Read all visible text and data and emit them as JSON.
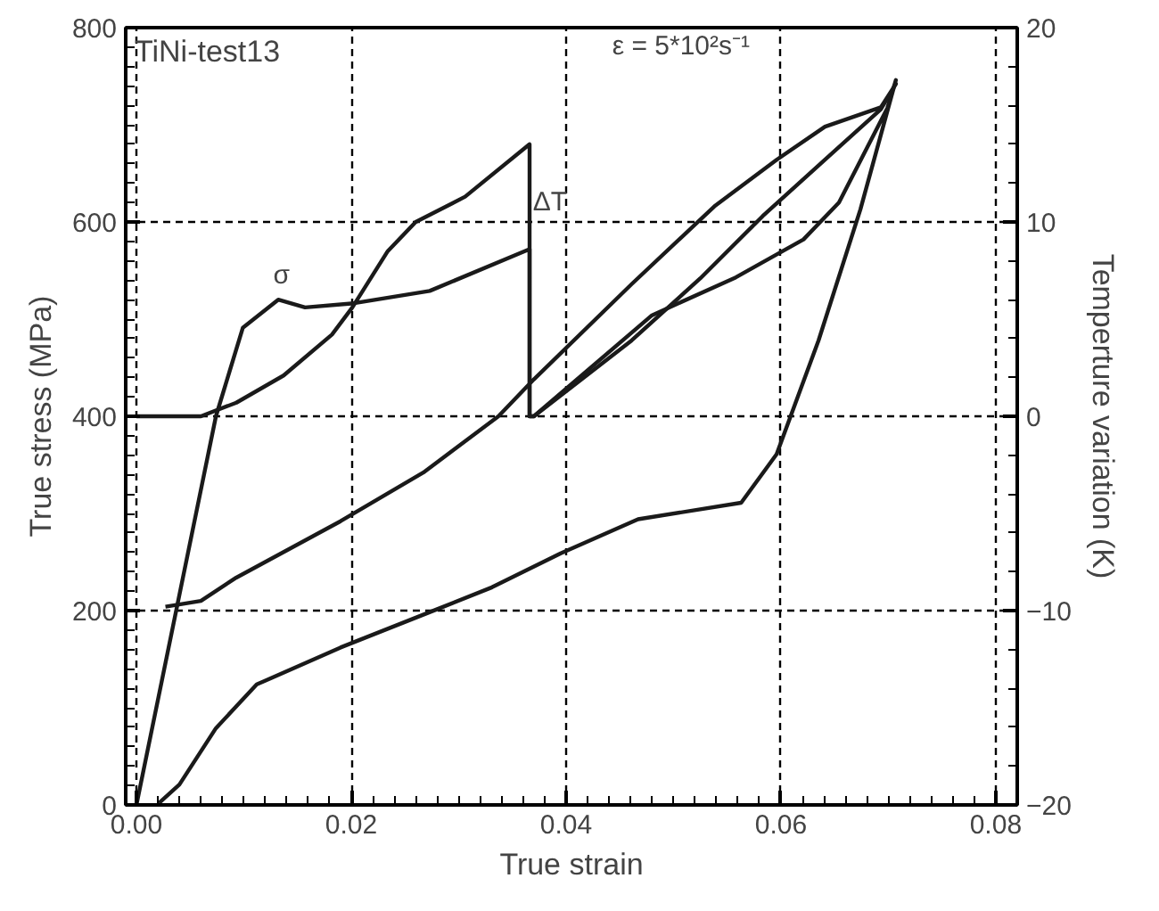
{
  "chart_data": {
    "type": "line",
    "xlabel": "True strain",
    "ylabel": "True stress (MPa)",
    "y2label": "Temperture variation (K)",
    "annotations": [
      "TiNi-test13",
      "ε = 5*10²s⁻¹",
      "σ",
      "ΔT"
    ],
    "xlim": [
      -0.001,
      0.082
    ],
    "xticks": [
      {
        "value": 0,
        "label": "0.00"
      },
      {
        "value": 0.02,
        "label": "0.02"
      },
      {
        "value": 0.04,
        "label": "0.04"
      },
      {
        "value": 0.06,
        "label": "0.06"
      },
      {
        "value": 0.08,
        "label": "0.08"
      }
    ],
    "ylim": [
      0,
      800
    ],
    "yticks": [
      0,
      200,
      400,
      600,
      800
    ],
    "y2lim": [
      -20,
      20
    ],
    "y2ticks": [
      -20,
      -10,
      0,
      10,
      20
    ],
    "grid": true,
    "line_style": "solid",
    "marker": "none",
    "series": [
      {
        "color": "#1a1a1a",
        "x": [
          0,
          0.0074,
          0.0099,
          0.0132,
          0.0157,
          0.02,
          0.0273,
          0.0366,
          0.0366,
          0.037,
          0.048,
          0.0558,
          0.0621,
          0.0654,
          0.0699,
          0.0707,
          0.0674,
          0.0635,
          0.0596,
          0.0563,
          0.0467,
          0.0395,
          0.0331,
          0.0279,
          0.019,
          0.0112,
          0.0074,
          0.004,
          0.0021
        ],
        "values": [
          0,
          400,
          491,
          520,
          512,
          516,
          529,
          572,
          400,
          400,
          504,
          543,
          582,
          620,
          717,
          746,
          613,
          478,
          361,
          311,
          294,
          259,
          224,
          201,
          162,
          124,
          79,
          21,
          2
        ]
      },
      {
        "color": "#1a1a1a",
        "axis": "y2",
        "x": [
          0,
          0.006,
          0.0093,
          0.0137,
          0.0182,
          0.0201,
          0.0234,
          0.026,
          0.0306,
          0.0366,
          0.0366,
          0.037,
          0.0461,
          0.0525,
          0.0583,
          0.0641,
          0.0693,
          0.0707,
          0.0693,
          0.0641,
          0.0596,
          0.0538,
          0.0461,
          0.037,
          0.0337,
          0.0267,
          0.019,
          0.0093,
          0.006,
          0.0027
        ],
        "values": [
          0,
          0,
          0.7,
          2.1,
          4.2,
          5.6,
          8.5,
          10.0,
          11.3,
          14.0,
          0,
          0,
          3.9,
          7.1,
          10.3,
          13.2,
          15.8,
          17.1,
          15.9,
          14.9,
          13.2,
          10.8,
          6.8,
          1.9,
          0,
          -2.9,
          -5.4,
          -8.3,
          -9.5,
          -9.8
        ]
      }
    ]
  }
}
